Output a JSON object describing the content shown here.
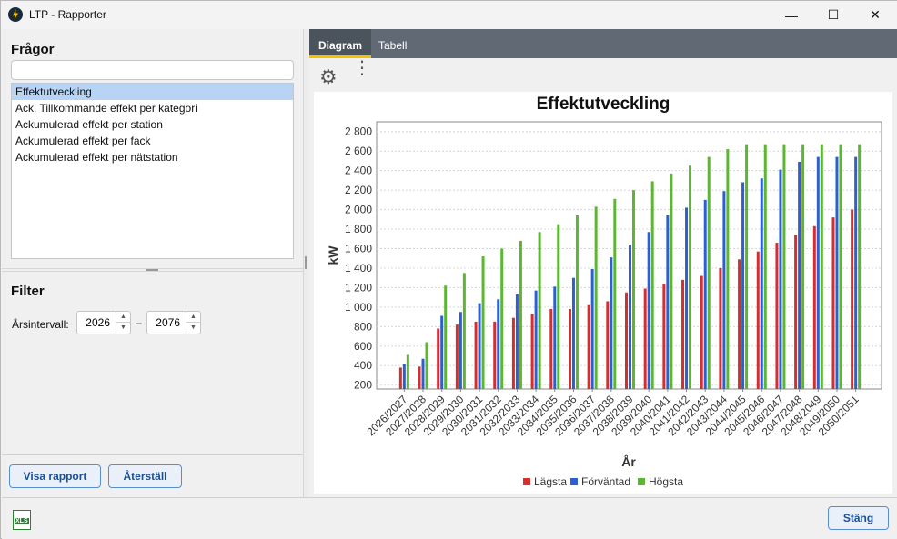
{
  "window": {
    "title": "LTP - Rapporter",
    "minimize": "—",
    "maximize": "☐",
    "close": "✕"
  },
  "questions": {
    "title": "Frågor",
    "search_value": "",
    "items": [
      "Effektutveckling",
      "Ack. Tillkommande effekt per kategori",
      "Ackumulerad effekt per station",
      "Ackumulerad effekt per fack",
      "Ackumulerad effekt per nätstation"
    ],
    "selected_index": 0
  },
  "filter": {
    "title": "Filter",
    "range_label": "Årsintervall:",
    "from": "2026",
    "to": "2076",
    "dash": "–"
  },
  "buttons": {
    "show_report": "Visa rapport",
    "reset": "Återställ",
    "close": "Stäng"
  },
  "tabs": [
    "Diagram",
    "Tabell"
  ],
  "active_tab": 0,
  "icons": {
    "settings": "gear-icon",
    "more": "more-vertical-icon",
    "export": "xls-file-icon"
  },
  "export_label": "XLS",
  "colors": {
    "lowest": "#d32f2f",
    "expected": "#2e5fd0",
    "highest": "#5cb533",
    "tab_accent": "#f2c200"
  },
  "chart_data": {
    "type": "bar",
    "title": "Effektutveckling",
    "xlabel": "År",
    "ylabel": "kW",
    "ylim": [
      160,
      2900
    ],
    "yticks": [
      200,
      400,
      600,
      800,
      1000,
      1200,
      1400,
      1600,
      1800,
      2000,
      2200,
      2400,
      2600,
      2800
    ],
    "ytick_labels": [
      "200",
      "400",
      "600",
      "800",
      "1 000",
      "1 200",
      "1 400",
      "1 600",
      "1 800",
      "2 000",
      "2 200",
      "2 400",
      "2 600",
      "2 800"
    ],
    "grid": true,
    "legend_position": "bottom",
    "categories": [
      "2026/2027",
      "2027/2028",
      "2028/2029",
      "2029/2030",
      "2030/2031",
      "2031/2032",
      "2032/2033",
      "2033/2034",
      "2034/2035",
      "2035/2036",
      "2036/2037",
      "2037/2038",
      "2038/2039",
      "2039/2040",
      "2040/2041",
      "2041/2042",
      "2042/2043",
      "2043/2044",
      "2044/2045",
      "2045/2046",
      "2046/2047",
      "2047/2048",
      "2048/2049",
      "2049/2050",
      "2050/2051"
    ],
    "series": [
      {
        "name": "Lägsta",
        "values": [
          380,
          390,
          780,
          820,
          850,
          850,
          890,
          930,
          980,
          980,
          1020,
          1060,
          1150,
          1190,
          1240,
          1280,
          1320,
          1400,
          1490,
          1570,
          1660,
          1740,
          1830,
          1920,
          2000
        ]
      },
      {
        "name": "Förväntad",
        "values": [
          420,
          470,
          910,
          950,
          1040,
          1080,
          1130,
          1170,
          1210,
          1300,
          1390,
          1510,
          1640,
          1770,
          1940,
          2020,
          2100,
          2190,
          2280,
          2320,
          2410,
          2490,
          2540,
          2540,
          2540
        ]
      },
      {
        "name": "Högsta",
        "values": [
          510,
          640,
          1220,
          1350,
          1520,
          1600,
          1680,
          1770,
          1850,
          1940,
          2030,
          2110,
          2200,
          2290,
          2370,
          2450,
          2540,
          2620,
          2670,
          2670,
          2670,
          2670,
          2670,
          2670,
          2670
        ]
      }
    ]
  }
}
